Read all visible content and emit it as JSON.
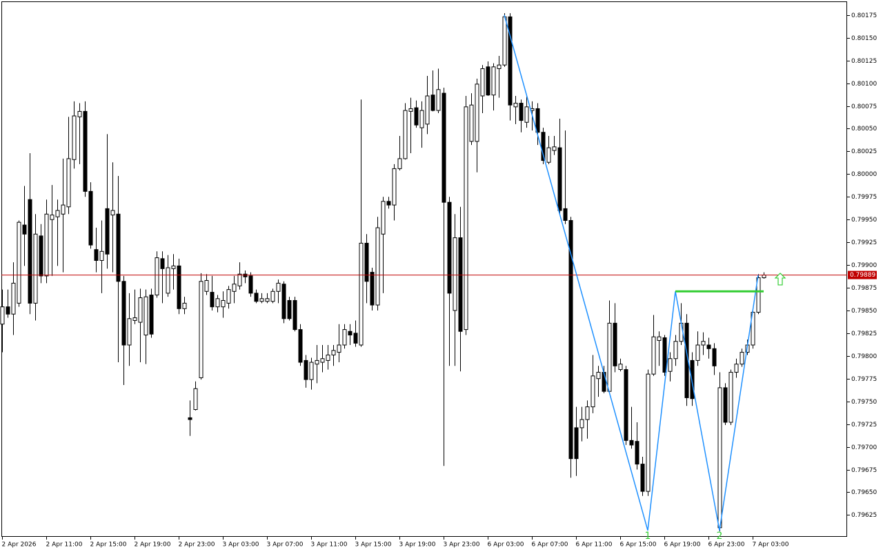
{
  "chart_data": {
    "type": "candlestick",
    "candle_up_color": "#ffffff",
    "candle_down_color": "#000000",
    "candles": [
      [
        0.79835,
        0.79873,
        0.79804,
        0.79854
      ],
      [
        0.79854,
        0.79873,
        0.79842,
        0.79846
      ],
      [
        0.79846,
        0.79903,
        0.79823,
        0.7988
      ],
      [
        0.79858,
        0.79949,
        0.79854,
        0.79947
      ],
      [
        0.79944,
        0.79987,
        0.79899,
        0.79934
      ],
      [
        0.79972,
        0.80023,
        0.79846,
        0.79858
      ],
      [
        0.79858,
        0.79956,
        0.79839,
        0.79934
      ],
      [
        0.79932,
        0.79945,
        0.7988,
        0.79888
      ],
      [
        0.79888,
        0.79972,
        0.7988,
        0.79956
      ],
      [
        0.7995,
        0.79988,
        0.79888,
        0.79955
      ],
      [
        0.79953,
        0.79972,
        0.79899,
        0.7996
      ],
      [
        0.79956,
        0.80017,
        0.79892,
        0.79966
      ],
      [
        0.79964,
        0.80063,
        0.79956,
        0.80017
      ],
      [
        0.80016,
        0.8008,
        0.80006,
        0.80064
      ],
      [
        0.80063,
        0.80078,
        0.80011,
        0.80069
      ],
      [
        0.80069,
        0.8008,
        0.79975,
        0.79981
      ],
      [
        0.79981,
        0.79991,
        0.79918,
        0.79922
      ],
      [
        0.79917,
        0.79941,
        0.79892,
        0.79905
      ],
      [
        0.79905,
        0.79949,
        0.79869,
        0.79915
      ],
      [
        0.79962,
        0.80044,
        0.79896,
        0.79912
      ],
      [
        0.79955,
        0.80013,
        0.79892,
        0.7996
      ],
      [
        0.79956,
        0.79998,
        0.79793,
        0.79882
      ],
      [
        0.79882,
        0.79888,
        0.79768,
        0.79812
      ],
      [
        0.79812,
        0.79869,
        0.79789,
        0.79841
      ],
      [
        0.79839,
        0.79873,
        0.79835,
        0.79842
      ],
      [
        0.79837,
        0.79874,
        0.79793,
        0.79864
      ],
      [
        0.79823,
        0.79873,
        0.79791,
        0.79865
      ],
      [
        0.79867,
        0.79874,
        0.7982,
        0.79824
      ],
      [
        0.79867,
        0.79915,
        0.79864,
        0.79908
      ],
      [
        0.79907,
        0.79915,
        0.79858,
        0.79896
      ],
      [
        0.79869,
        0.79911,
        0.79865,
        0.79897
      ],
      [
        0.79896,
        0.79912,
        0.79873,
        0.79899
      ],
      [
        0.79899,
        0.79907,
        0.79846,
        0.79852
      ],
      [
        0.79852,
        0.79865,
        0.79846,
        0.79858
      ],
      [
        0.79732,
        0.79751,
        0.79712,
        0.7973
      ],
      [
        0.79741,
        0.79772,
        0.7974,
        0.79764
      ],
      [
        0.79776,
        0.79891,
        0.79774,
        0.79882
      ],
      [
        0.79871,
        0.7989,
        0.79867,
        0.79883
      ],
      [
        0.7987,
        0.79888,
        0.7985,
        0.79854
      ],
      [
        0.79854,
        0.79867,
        0.79848,
        0.79863
      ],
      [
        0.79854,
        0.79871,
        0.79842,
        0.79861
      ],
      [
        0.79858,
        0.79877,
        0.79852,
        0.79873
      ],
      [
        0.79871,
        0.79888,
        0.79858,
        0.79879
      ],
      [
        0.79877,
        0.79903,
        0.79873,
        0.7989
      ],
      [
        0.7989,
        0.79894,
        0.7988,
        0.79887
      ],
      [
        0.79888,
        0.79892,
        0.79865,
        0.79869
      ],
      [
        0.79869,
        0.79873,
        0.79858,
        0.7986
      ],
      [
        0.7986,
        0.79869,
        0.79858,
        0.79863
      ],
      [
        0.7986,
        0.79869,
        0.79858,
        0.79863
      ],
      [
        0.7986,
        0.79874,
        0.79858,
        0.79871
      ],
      [
        0.79871,
        0.79884,
        0.79858,
        0.7988
      ],
      [
        0.79879,
        0.79882,
        0.79836,
        0.79841
      ],
      [
        0.79861,
        0.79865,
        0.79839,
        0.79841
      ],
      [
        0.79861,
        0.79865,
        0.79827,
        0.79829
      ],
      [
        0.79829,
        0.79835,
        0.79789,
        0.79793
      ],
      [
        0.79795,
        0.79801,
        0.79765,
        0.79774
      ],
      [
        0.79774,
        0.79798,
        0.79763,
        0.79793
      ],
      [
        0.79791,
        0.79812,
        0.7977,
        0.79795
      ],
      [
        0.79793,
        0.79812,
        0.79782,
        0.79797
      ],
      [
        0.79795,
        0.79812,
        0.79785,
        0.79801
      ],
      [
        0.79801,
        0.79812,
        0.79789,
        0.79806
      ],
      [
        0.79804,
        0.79835,
        0.79793,
        0.79812
      ],
      [
        0.79812,
        0.79835,
        0.79808,
        0.79829
      ],
      [
        0.79827,
        0.79835,
        0.79812,
        0.79823
      ],
      [
        0.79825,
        0.79839,
        0.7981,
        0.79814
      ],
      [
        0.79812,
        0.80082,
        0.7981,
        0.79924
      ],
      [
        0.79924,
        0.79934,
        0.79858,
        0.79882
      ],
      [
        0.79892,
        0.79897,
        0.7985,
        0.79856
      ],
      [
        0.79856,
        0.79953,
        0.7985,
        0.79941
      ],
      [
        0.79934,
        0.79975,
        0.79869,
        0.7997
      ],
      [
        0.7997,
        0.79975,
        0.79962,
        0.79966
      ],
      [
        0.79966,
        0.80011,
        0.79949,
        0.80006
      ],
      [
        0.80006,
        0.80042,
        0.80004,
        0.80017
      ],
      [
        0.80017,
        0.80078,
        0.80016,
        0.8007
      ],
      [
        0.80069,
        0.80084,
        0.80023,
        0.80072
      ],
      [
        0.80073,
        0.80081,
        0.80051,
        0.80054
      ],
      [
        0.80051,
        0.8008,
        0.80029,
        0.8007
      ],
      [
        0.80055,
        0.80108,
        0.80044,
        0.80086
      ],
      [
        0.80087,
        0.80114,
        0.80069,
        0.8007
      ],
      [
        0.8007,
        0.80116,
        0.80067,
        0.80093
      ],
      [
        0.80089,
        0.80095,
        0.79679,
        0.79969
      ],
      [
        0.79969,
        0.79975,
        0.79789,
        0.79869
      ],
      [
        0.7985,
        0.79956,
        0.79789,
        0.7993
      ],
      [
        0.7993,
        0.79964,
        0.79783,
        0.79827
      ],
      [
        0.79829,
        0.80086,
        0.79823,
        0.80074
      ],
      [
        0.80036,
        0.80089,
        0.80032,
        0.80076
      ],
      [
        0.80036,
        0.80105,
        0.80002,
        0.80099
      ],
      [
        0.80086,
        0.8012,
        0.80067,
        0.80116
      ],
      [
        0.80118,
        0.80124,
        0.80086,
        0.80087
      ],
      [
        0.80087,
        0.80122,
        0.8007,
        0.80118
      ],
      [
        0.80116,
        0.8013,
        0.80084,
        0.8012
      ],
      [
        0.8012,
        0.80177,
        0.80118,
        0.80173
      ],
      [
        0.80173,
        0.80177,
        0.80059,
        0.80076
      ],
      [
        0.80074,
        0.80086,
        0.80055,
        0.80078
      ],
      [
        0.80078,
        0.80082,
        0.80046,
        0.80059
      ],
      [
        0.80057,
        0.80086,
        0.80051,
        0.80074
      ],
      [
        0.8007,
        0.8008,
        0.80048,
        0.80072
      ],
      [
        0.80072,
        0.80078,
        0.80032,
        0.80046
      ],
      [
        0.80046,
        0.80051,
        0.80011,
        0.80015
      ],
      [
        0.80013,
        0.80042,
        0.80011,
        0.80029
      ],
      [
        0.80026,
        0.80042,
        0.80021,
        0.8003
      ],
      [
        0.80029,
        0.80061,
        0.79956,
        0.7996
      ],
      [
        0.79962,
        0.80048,
        0.79945,
        0.79949
      ],
      [
        0.79949,
        0.79953,
        0.79666,
        0.79687
      ],
      [
        0.79721,
        0.79744,
        0.79668,
        0.79687
      ],
      [
        0.79721,
        0.79744,
        0.79706,
        0.7973
      ],
      [
        0.7973,
        0.79751,
        0.79709,
        0.79744
      ],
      [
        0.79744,
        0.79801,
        0.79737,
        0.79778
      ],
      [
        0.79775,
        0.79789,
        0.79755,
        0.79782
      ],
      [
        0.79782,
        0.79789,
        0.79759,
        0.79761
      ],
      [
        0.79761,
        0.79861,
        0.79759,
        0.79836
      ],
      [
        0.79836,
        0.79858,
        0.79782,
        0.79789
      ],
      [
        0.79785,
        0.79797,
        0.79783,
        0.79791
      ],
      [
        0.79785,
        0.79789,
        0.79702,
        0.79707
      ],
      [
        0.79707,
        0.79744,
        0.79698,
        0.79702
      ],
      [
        0.79706,
        0.79727,
        0.79675,
        0.79681
      ],
      [
        0.79681,
        0.79689,
        0.79646,
        0.79651
      ],
      [
        0.79651,
        0.79785,
        0.79646,
        0.7978
      ],
      [
        0.7978,
        0.79845,
        0.79778,
        0.79821
      ],
      [
        0.79817,
        0.79827,
        0.79789,
        0.79821
      ],
      [
        0.7982,
        0.79823,
        0.79778,
        0.79782
      ],
      [
        0.79783,
        0.79804,
        0.79772,
        0.79797
      ],
      [
        0.79797,
        0.79823,
        0.79789,
        0.79816
      ],
      [
        0.79816,
        0.79858,
        0.79812,
        0.79836
      ],
      [
        0.79836,
        0.79846,
        0.79745,
        0.79754
      ],
      [
        0.79795,
        0.79804,
        0.79745,
        0.79753
      ],
      [
        0.79795,
        0.79827,
        0.79789,
        0.79812
      ],
      [
        0.79812,
        0.79826,
        0.79801,
        0.79816
      ],
      [
        0.79812,
        0.7982,
        0.79797,
        0.79808
      ],
      [
        0.79808,
        0.79814,
        0.79779,
        0.79789
      ],
      [
        0.79611,
        0.79782,
        0.79607,
        0.79765
      ],
      [
        0.79765,
        0.7977,
        0.79724,
        0.79727
      ],
      [
        0.79727,
        0.79785,
        0.79724,
        0.79782
      ],
      [
        0.79782,
        0.79797,
        0.79776,
        0.79791
      ],
      [
        0.79791,
        0.79808,
        0.79788,
        0.79804
      ],
      [
        0.79804,
        0.79818,
        0.79801,
        0.79812
      ],
      [
        0.79812,
        0.79851,
        0.79808,
        0.79848
      ],
      [
        0.79848,
        0.7989,
        0.79846,
        0.79886
      ],
      [
        0.79886,
        0.79892,
        0.79885,
        0.79889
      ]
    ],
    "xlim": [
      -0.125,
      153.125
    ],
    "xticks": [
      {
        "value": 0,
        "label": "2 Apr 2026"
      },
      {
        "value": 8,
        "label": "2 Apr 11:00"
      },
      {
        "value": 16,
        "label": "2 Apr 15:00"
      },
      {
        "value": 24,
        "label": "2 Apr 19:00"
      },
      {
        "value": 32,
        "label": "2 Apr 23:00"
      },
      {
        "value": 40,
        "label": "3 Apr 03:00"
      },
      {
        "value": 48,
        "label": "3 Apr 07:00"
      },
      {
        "value": 56,
        "label": "3 Apr 11:00"
      },
      {
        "value": 64,
        "label": "3 Apr 15:00"
      },
      {
        "value": 72,
        "label": "3 Apr 19:00"
      },
      {
        "value": 80,
        "label": "3 Apr 23:00"
      },
      {
        "value": 88,
        "label": "6 Apr 03:00"
      },
      {
        "value": 96,
        "label": "6 Apr 07:00"
      },
      {
        "value": 104,
        "label": "6 Apr 11:00"
      },
      {
        "value": 112,
        "label": "6 Apr 15:00"
      },
      {
        "value": 120,
        "label": "6 Apr 19:00"
      },
      {
        "value": 128,
        "label": "6 Apr 23:00"
      },
      {
        "value": 136,
        "label": "7 Apr 03:00"
      }
    ],
    "ylim": [
      0.79601,
      0.8019
    ],
    "yticks": [
      0.80175,
      {
        "value": 0.8015,
        "label": "0.80150"
      },
      0.80125,
      {
        "value": 0.801,
        "label": "0.80100"
      },
      0.80075,
      {
        "value": 0.8005,
        "label": "0.80050"
      },
      0.80025,
      {
        "value": 0.8,
        "label": "0.80000"
      },
      0.79975,
      {
        "value": 0.7995,
        "label": "0.79950"
      },
      0.79925,
      {
        "value": 0.799,
        "label": "0.79900"
      },
      0.79875,
      {
        "value": 0.7985,
        "label": "0.79850"
      },
      0.79825,
      {
        "value": 0.798,
        "label": "0.79800"
      },
      0.79775,
      {
        "value": 0.7975,
        "label": "0.79750"
      },
      0.79725,
      {
        "value": 0.797,
        "label": "0.79700"
      },
      0.79675,
      {
        "value": 0.7965,
        "label": "0.79650"
      },
      0.79625
    ],
    "current_price": 0.79889,
    "current_price_color": "#c00000",
    "pattern": {
      "color": "#1e90ff",
      "x": [
        91,
        117,
        122,
        130,
        137
      ],
      "y": [
        0.80175,
        0.79608,
        0.79871,
        0.79608,
        0.79889
      ],
      "labels": [
        null,
        "1",
        null,
        "2",
        null
      ],
      "label_color": "#32cd32"
    },
    "neckline": {
      "color": "#32cd32",
      "x": [
        122,
        138
      ],
      "y": [
        0.79871,
        0.79871
      ]
    },
    "signal": {
      "color": "#32cd32",
      "x": 141,
      "y": 0.79891
    }
  }
}
